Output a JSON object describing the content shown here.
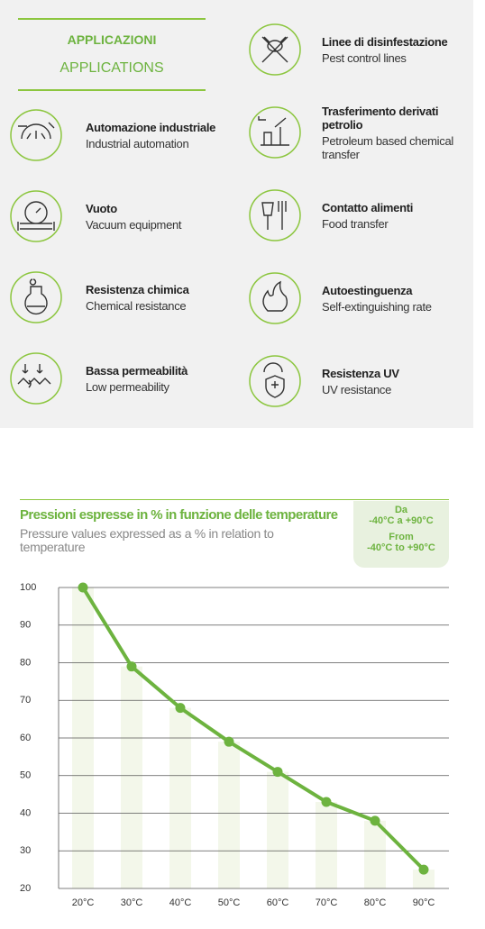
{
  "applications": {
    "title_it": "APPLICAZIONI",
    "title_en": "APPLICATIONS",
    "left": [
      {
        "it": "Automazione industriale",
        "en": "Industrial automation"
      },
      {
        "it": "Vuoto",
        "en": "Vacuum equipment"
      },
      {
        "it": "Resistenza chimica",
        "en": "Chemical resistance"
      },
      {
        "it": "Bassa permeabilità",
        "en": "Low permeability"
      }
    ],
    "right": [
      {
        "it": "Linee di disinfestazione",
        "en": "Pest control lines"
      },
      {
        "it": "Trasferimento derivati petrolio",
        "en": "Petroleum based chemical transfer"
      },
      {
        "it": "Contatto alimenti",
        "en": "Food transfer"
      },
      {
        "it": "Autoestinguenza",
        "en": "Self-extinguishing rate"
      },
      {
        "it": "Resistenza UV",
        "en": "UV resistance"
      }
    ]
  },
  "chart_data": {
    "type": "line",
    "title": "Pressioni espresse in % in funzione delle temperature",
    "subtitle": "Pressure values expressed as a % in relation to temperature",
    "annotations": [
      "Da",
      "-40°C a +90°C",
      "From",
      "-40°C to +90°C"
    ],
    "categories": [
      "20°C",
      "30°C",
      "40°C",
      "50°C",
      "60°C",
      "70°C",
      "80°C",
      "90°C"
    ],
    "values": [
      100,
      79,
      68,
      59,
      51,
      43,
      38,
      25
    ],
    "color": "#6db33f",
    "ylim": [
      20,
      100
    ],
    "yticks": [
      20,
      30,
      40,
      50,
      60,
      70,
      80,
      90,
      100
    ],
    "grid": true
  }
}
